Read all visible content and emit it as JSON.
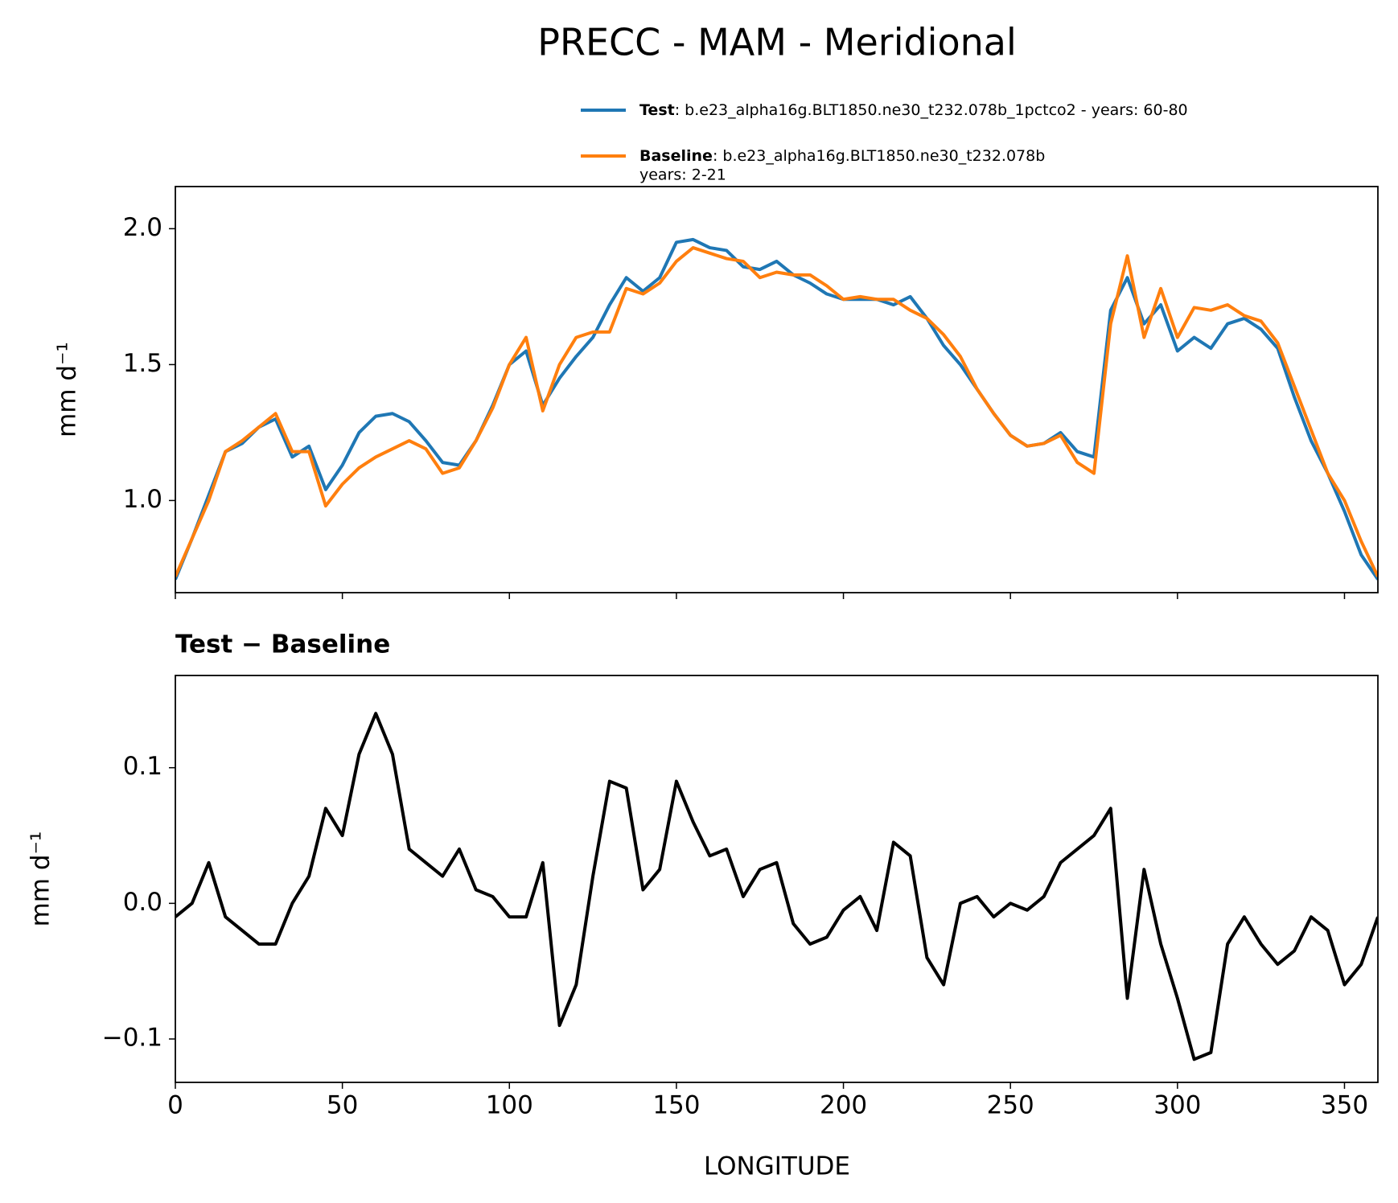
{
  "chart_data": [
    {
      "type": "line",
      "title": "PRECC - MAM - Meridional",
      "ylabel": "mm d⁻¹",
      "x": [
        0,
        5,
        10,
        15,
        20,
        25,
        30,
        35,
        40,
        45,
        50,
        55,
        60,
        65,
        70,
        75,
        80,
        85,
        90,
        95,
        100,
        105,
        110,
        115,
        120,
        125,
        130,
        135,
        140,
        145,
        150,
        155,
        160,
        165,
        170,
        175,
        180,
        185,
        190,
        195,
        200,
        205,
        210,
        215,
        220,
        225,
        230,
        235,
        240,
        245,
        250,
        255,
        260,
        265,
        270,
        275,
        280,
        285,
        290,
        295,
        300,
        305,
        310,
        315,
        320,
        325,
        330,
        335,
        340,
        345,
        350,
        355,
        360
      ],
      "series": [
        {
          "name": "Test",
          "description": [
            ": b.e23_alpha16g.BLT1850.ne30_t232.078b_1pctco2 - years: 60-80"
          ],
          "color": "#1f77b4",
          "values": [
            0.71,
            0.86,
            1.02,
            1.18,
            1.21,
            1.27,
            1.3,
            1.16,
            1.2,
            1.04,
            1.13,
            1.25,
            1.31,
            1.32,
            1.29,
            1.22,
            1.14,
            1.13,
            1.22,
            1.35,
            1.5,
            1.55,
            1.35,
            1.45,
            1.53,
            1.6,
            1.72,
            1.82,
            1.77,
            1.82,
            1.95,
            1.96,
            1.93,
            1.92,
            1.86,
            1.85,
            1.88,
            1.83,
            1.8,
            1.76,
            1.74,
            1.74,
            1.74,
            1.72,
            1.75,
            1.67,
            1.57,
            1.5,
            1.41,
            1.32,
            1.24,
            1.2,
            1.21,
            1.25,
            1.18,
            1.16,
            1.7,
            1.82,
            1.65,
            1.72,
            1.55,
            1.6,
            1.56,
            1.65,
            1.67,
            1.63,
            1.56,
            1.38,
            1.22,
            1.1,
            0.96,
            0.8,
            0.71
          ]
        },
        {
          "name": "Baseline",
          "description": [
            ": b.e23_alpha16g.BLT1850.ne30_t232.078b",
            "years: 2-21"
          ],
          "color": "#ff7f0e",
          "values": [
            0.72,
            0.86,
            1.0,
            1.18,
            1.22,
            1.27,
            1.32,
            1.18,
            1.18,
            0.98,
            1.06,
            1.12,
            1.16,
            1.19,
            1.22,
            1.19,
            1.1,
            1.12,
            1.22,
            1.34,
            1.5,
            1.6,
            1.33,
            1.5,
            1.6,
            1.62,
            1.62,
            1.78,
            1.76,
            1.8,
            1.88,
            1.93,
            1.91,
            1.89,
            1.88,
            1.82,
            1.84,
            1.83,
            1.83,
            1.79,
            1.74,
            1.75,
            1.74,
            1.74,
            1.7,
            1.67,
            1.61,
            1.53,
            1.41,
            1.32,
            1.24,
            1.2,
            1.21,
            1.24,
            1.14,
            1.1,
            1.65,
            1.9,
            1.6,
            1.78,
            1.6,
            1.71,
            1.7,
            1.72,
            1.68,
            1.66,
            1.58,
            1.42,
            1.26,
            1.1,
            1.0,
            0.85,
            0.72
          ]
        }
      ],
      "xlim": [
        0,
        360
      ],
      "xticks": [
        0,
        50,
        100,
        150,
        200,
        250,
        300,
        350
      ],
      "xtick_labels_shown": false,
      "ylim": [
        0.661,
        2.155
      ],
      "yticks": [
        {
          "value": 1.0,
          "label": "1.0"
        },
        1.5,
        {
          "value": 2.0,
          "label": "2.0"
        }
      ]
    },
    {
      "type": "line",
      "title": "Test − Baseline",
      "ylabel": "mm d⁻¹",
      "xlabel": "LONGITUDE",
      "x": [
        0,
        5,
        10,
        15,
        20,
        25,
        30,
        35,
        40,
        45,
        50,
        55,
        60,
        65,
        70,
        75,
        80,
        85,
        90,
        95,
        100,
        105,
        110,
        115,
        120,
        125,
        130,
        135,
        140,
        145,
        150,
        155,
        160,
        165,
        170,
        175,
        180,
        185,
        190,
        195,
        200,
        205,
        210,
        215,
        220,
        225,
        230,
        235,
        240,
        245,
        250,
        255,
        260,
        265,
        270,
        275,
        280,
        285,
        290,
        295,
        300,
        305,
        310,
        315,
        320,
        325,
        330,
        335,
        340,
        345,
        350,
        355,
        360
      ],
      "series": [
        {
          "color": "#000000",
          "values": [
            -0.01,
            0.0,
            0.03,
            -0.01,
            -0.02,
            -0.03,
            -0.03,
            0.0,
            0.02,
            0.07,
            0.05,
            0.11,
            0.14,
            0.11,
            0.04,
            0.03,
            0.02,
            0.04,
            0.01,
            0.005,
            -0.01,
            -0.01,
            0.03,
            -0.09,
            -0.06,
            0.02,
            0.09,
            0.085,
            0.01,
            0.025,
            0.09,
            0.06,
            0.035,
            0.04,
            0.005,
            0.025,
            0.03,
            -0.015,
            -0.03,
            -0.025,
            -0.005,
            0.005,
            -0.02,
            0.045,
            0.035,
            -0.04,
            -0.06,
            0.0,
            0.005,
            -0.01,
            0.0,
            -0.005,
            0.005,
            0.03,
            0.04,
            0.05,
            0.07,
            -0.07,
            0.025,
            -0.03,
            -0.07,
            -0.115,
            -0.11,
            -0.03,
            -0.01,
            -0.03,
            -0.045,
            -0.035,
            -0.01,
            -0.02,
            -0.06,
            -0.045,
            -0.01
          ]
        }
      ],
      "xlim": [
        0,
        360
      ],
      "xticks": [
        0,
        50,
        100,
        150,
        200,
        250,
        300,
        350
      ],
      "xtick_labels_shown": true,
      "ylim": [
        -0.132,
        0.168
      ],
      "yticks": [
        {
          "value": -0.1,
          "label": "−0.1"
        },
        {
          "value": 0.0,
          "label": "0.0"
        },
        0.1
      ]
    }
  ]
}
